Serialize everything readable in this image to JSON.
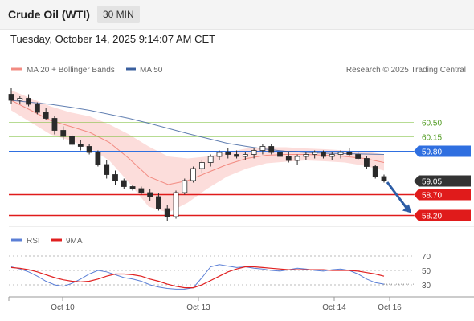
{
  "header": {
    "title": "Crude Oil (WTI)",
    "timeframe": "30 MIN"
  },
  "datetime": "Tuesday, October 14, 2025 9:14:07 AM CET",
  "legend": {
    "ma20": {
      "label": "MA 20 + Bollinger Bands",
      "color": "#f28b82"
    },
    "ma50": {
      "label": "MA 50",
      "color": "#3a5f9e"
    },
    "credit": "Research © 2025 Trading Central"
  },
  "rsi_legend": {
    "rsi": {
      "label": "RSI",
      "color": "#5b7fd6"
    },
    "ma": {
      "label": "9MA",
      "color": "#e02020"
    }
  },
  "chart_data": [
    {
      "type": "candlestick",
      "title": "Crude Oil (WTI)",
      "ylim": [
        57.95,
        61.55
      ],
      "x_ticks": [
        "Oct 10",
        "Oct 13",
        "Oct 14",
        "Oct 16"
      ],
      "levels": [
        {
          "value": 60.5,
          "label": "60.50",
          "kind": "resistance"
        },
        {
          "value": 60.15,
          "label": "60.15",
          "kind": "resistance"
        },
        {
          "value": 59.8,
          "label": "59.80",
          "kind": "pivot"
        },
        {
          "value": 59.05,
          "label": "59.05",
          "kind": "last"
        },
        {
          "value": 58.7,
          "label": "58.70",
          "kind": "support"
        },
        {
          "value": 58.2,
          "label": "58.20",
          "kind": "support"
        }
      ],
      "candles": [
        [
          61.2,
          61.35,
          60.95,
          61.05
        ],
        [
          61.05,
          61.15,
          60.95,
          61.1
        ],
        [
          61.1,
          61.2,
          60.9,
          60.95
        ],
        [
          60.95,
          61.0,
          60.7,
          60.75
        ],
        [
          60.75,
          60.85,
          60.55,
          60.6
        ],
        [
          60.6,
          60.65,
          60.2,
          60.3
        ],
        [
          60.3,
          60.4,
          60.05,
          60.15
        ],
        [
          60.15,
          60.2,
          59.9,
          59.95
        ],
        [
          59.95,
          60.05,
          59.8,
          59.9
        ],
        [
          59.9,
          59.95,
          59.7,
          59.75
        ],
        [
          59.75,
          59.8,
          59.4,
          59.45
        ],
        [
          59.45,
          59.55,
          59.1,
          59.2
        ],
        [
          59.2,
          59.3,
          58.95,
          59.05
        ],
        [
          59.05,
          59.1,
          58.85,
          58.9
        ],
        [
          58.9,
          58.95,
          58.8,
          58.85
        ],
        [
          58.85,
          58.9,
          58.7,
          58.75
        ],
        [
          58.75,
          58.85,
          58.55,
          58.65
        ],
        [
          58.65,
          58.75,
          58.3,
          58.35
        ],
        [
          58.35,
          58.45,
          58.05,
          58.15
        ],
        [
          58.15,
          58.8,
          58.1,
          58.75
        ],
        [
          58.75,
          59.1,
          58.7,
          59.05
        ],
        [
          59.05,
          59.4,
          59.0,
          59.35
        ],
        [
          59.35,
          59.55,
          59.25,
          59.5
        ],
        [
          59.5,
          59.7,
          59.4,
          59.65
        ],
        [
          59.65,
          59.8,
          59.55,
          59.75
        ],
        [
          59.75,
          59.85,
          59.6,
          59.7
        ],
        [
          59.7,
          59.8,
          59.6,
          59.65
        ],
        [
          59.65,
          59.75,
          59.55,
          59.7
        ],
        [
          59.7,
          59.85,
          59.6,
          59.8
        ],
        [
          59.8,
          59.95,
          59.7,
          59.9
        ],
        [
          59.9,
          59.95,
          59.7,
          59.75
        ],
        [
          59.75,
          59.85,
          59.6,
          59.65
        ],
        [
          59.65,
          59.75,
          59.5,
          59.55
        ],
        [
          59.55,
          59.7,
          59.45,
          59.65
        ],
        [
          59.65,
          59.75,
          59.55,
          59.7
        ],
        [
          59.7,
          59.8,
          59.6,
          59.75
        ],
        [
          59.75,
          59.8,
          59.6,
          59.65
        ],
        [
          59.65,
          59.75,
          59.55,
          59.7
        ],
        [
          59.7,
          59.8,
          59.6,
          59.75
        ],
        [
          59.75,
          59.85,
          59.65,
          59.7
        ],
        [
          59.7,
          59.75,
          59.55,
          59.6
        ],
        [
          59.6,
          59.65,
          59.35,
          59.4
        ],
        [
          59.4,
          59.45,
          59.1,
          59.15
        ],
        [
          59.15,
          59.2,
          59.0,
          59.05
        ]
      ],
      "ma50_curve": [
        61.05,
        61.0,
        60.95,
        60.88,
        60.8,
        60.7,
        60.6,
        60.48,
        60.35,
        60.22,
        60.1,
        59.98,
        59.9,
        59.83,
        59.78,
        59.75,
        59.73,
        59.72,
        59.71,
        59.7
      ],
      "bollinger_mid_curve": [
        61.05,
        60.8,
        60.55,
        60.4,
        60.25,
        60.0,
        59.6,
        59.15,
        58.95,
        59.05,
        59.25,
        59.45,
        59.6,
        59.68,
        59.7,
        59.7,
        59.68,
        59.65,
        59.6,
        59.5
      ],
      "bollinger_width_curve": [
        0.25,
        0.3,
        0.35,
        0.35,
        0.4,
        0.45,
        0.6,
        0.75,
        0.7,
        0.55,
        0.4,
        0.3,
        0.25,
        0.2,
        0.18,
        0.15,
        0.15,
        0.15,
        0.18,
        0.2
      ],
      "forecast_arrow": {
        "from": 59.05,
        "to": 58.2
      }
    },
    {
      "type": "line",
      "title": "RSI",
      "ylim": [
        20,
        80
      ],
      "y_ticks": [
        70,
        50,
        30
      ],
      "series": [
        {
          "name": "RSI",
          "values": [
            55,
            52,
            48,
            42,
            35,
            30,
            28,
            32,
            38,
            45,
            50,
            48,
            44,
            40,
            38,
            35,
            30,
            27,
            25,
            24,
            24,
            26,
            40,
            55,
            58,
            56,
            54,
            55,
            53,
            52,
            50,
            49,
            51,
            53,
            52,
            50,
            49,
            51,
            52,
            50,
            45,
            38,
            33,
            31
          ]
        },
        {
          "name": "9MA",
          "values": [
            54,
            53,
            51,
            48,
            44,
            40,
            37,
            35,
            34,
            35,
            38,
            42,
            45,
            45,
            44,
            42,
            38,
            35,
            31,
            28,
            26,
            26,
            30,
            36,
            42,
            48,
            52,
            55,
            55,
            54,
            53,
            52,
            51,
            51,
            51,
            51,
            51,
            50,
            50,
            50,
            49,
            47,
            45,
            42
          ]
        }
      ]
    }
  ]
}
